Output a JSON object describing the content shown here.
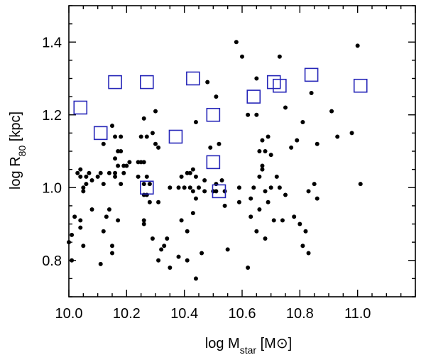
{
  "chart_data": {
    "type": "scatter",
    "xlabel": {
      "main": "log M",
      "sub": "star",
      "unit_open": " [M",
      "unit_sym": "⊙",
      "unit_close": "]"
    },
    "ylabel": {
      "main": "log R",
      "sub": "80",
      "unit": " [kpc]"
    },
    "xlim": [
      10.0,
      11.2
    ],
    "ylim": [
      0.7,
      1.5
    ],
    "x_ticks": [
      "10.0",
      "10.2",
      "10.4",
      "10.6",
      "10.8",
      "11.0"
    ],
    "y_ticks": [
      "0.8",
      "1.0",
      "1.2",
      "1.4"
    ],
    "grid": false,
    "colors": {
      "points": "#000000",
      "squares": "#2626b8"
    },
    "series": [
      {
        "marker": "circle",
        "points": [
          [
            10.0,
            0.85
          ],
          [
            10.01,
            0.87
          ],
          [
            10.01,
            0.8
          ],
          [
            10.02,
            0.92
          ],
          [
            10.03,
            1.04
          ],
          [
            10.04,
            1.03
          ],
          [
            10.04,
            1.05
          ],
          [
            10.04,
            0.91
          ],
          [
            10.04,
            0.89
          ],
          [
            10.05,
            1.0
          ],
          [
            10.05,
            0.99
          ],
          [
            10.05,
            0.84
          ],
          [
            10.06,
            1.03
          ],
          [
            10.06,
            1.01
          ],
          [
            10.07,
            1.04
          ],
          [
            10.08,
            1.02
          ],
          [
            10.08,
            0.94
          ],
          [
            10.1,
            1.03
          ],
          [
            10.11,
            1.04
          ],
          [
            10.11,
            0.79
          ],
          [
            10.12,
            1.01
          ],
          [
            10.12,
            0.88
          ],
          [
            10.12,
            1.12
          ],
          [
            10.13,
            0.92
          ],
          [
            10.14,
            1.04
          ],
          [
            10.14,
            0.94
          ],
          [
            10.15,
            1.17
          ],
          [
            10.15,
            0.84
          ],
          [
            10.15,
            0.82
          ],
          [
            10.16,
            1.14
          ],
          [
            10.16,
            1.08
          ],
          [
            10.16,
            1.04
          ],
          [
            10.16,
            1.03
          ],
          [
            10.17,
            1.1
          ],
          [
            10.17,
            1.06
          ],
          [
            10.17,
            0.91
          ],
          [
            10.18,
            1.14
          ],
          [
            10.18,
            1.1
          ],
          [
            10.18,
            1.01
          ],
          [
            10.19,
            1.06
          ],
          [
            10.19,
            1.04
          ],
          [
            10.2,
            1.06
          ],
          [
            10.21,
            1.07
          ],
          [
            10.24,
            1.07
          ],
          [
            10.24,
            1.03
          ],
          [
            10.25,
            1.14
          ],
          [
            10.25,
            1.07
          ],
          [
            10.26,
            1.19
          ],
          [
            10.26,
            1.07
          ],
          [
            10.26,
            1.01
          ],
          [
            10.26,
            0.98
          ],
          [
            10.26,
            0.91
          ],
          [
            10.26,
            0.9
          ],
          [
            10.27,
            1.14
          ],
          [
            10.27,
            1.03
          ],
          [
            10.27,
            0.98
          ],
          [
            10.28,
            1.01
          ],
          [
            10.28,
            0.96
          ],
          [
            10.29,
            1.15
          ],
          [
            10.29,
            0.86
          ],
          [
            10.3,
            1.21
          ],
          [
            10.3,
            1.12
          ],
          [
            10.31,
            1.11
          ],
          [
            10.31,
            0.96
          ],
          [
            10.31,
            0.8
          ],
          [
            10.32,
            0.83
          ],
          [
            10.33,
            0.84
          ],
          [
            10.34,
            0.86
          ],
          [
            10.35,
            1.0
          ],
          [
            10.35,
            0.78
          ],
          [
            10.38,
            1.0
          ],
          [
            10.38,
            0.81
          ],
          [
            10.39,
            1.03
          ],
          [
            10.39,
            0.91
          ],
          [
            10.4,
            1.0
          ],
          [
            10.41,
            1.04
          ],
          [
            10.41,
            0.8
          ],
          [
            10.41,
            0.88
          ],
          [
            10.42,
            1.04
          ],
          [
            10.42,
            1.0
          ],
          [
            10.43,
            1.05
          ],
          [
            10.43,
            0.99
          ],
          [
            10.43,
            0.93
          ],
          [
            10.44,
            1.18
          ],
          [
            10.44,
            1.03
          ],
          [
            10.44,
            0.97
          ],
          [
            10.44,
            0.75
          ],
          [
            10.45,
            1.0
          ],
          [
            10.46,
            0.82
          ],
          [
            10.47,
            1.02
          ],
          [
            10.47,
            0.99
          ],
          [
            10.48,
            1.29
          ],
          [
            10.49,
            1.11
          ],
          [
            10.5,
            0.99
          ],
          [
            10.51,
            1.25
          ],
          [
            10.51,
            1.01
          ],
          [
            10.51,
            0.99
          ],
          [
            10.52,
            1.12
          ],
          [
            10.53,
            1.02
          ],
          [
            10.54,
            0.99
          ],
          [
            10.54,
            0.95
          ],
          [
            10.55,
            0.83
          ],
          [
            10.58,
            1.4
          ],
          [
            10.59,
            1.0
          ],
          [
            10.59,
            0.96
          ],
          [
            10.6,
            1.36
          ],
          [
            10.62,
            1.2
          ],
          [
            10.62,
            0.78
          ],
          [
            10.63,
            0.97
          ],
          [
            10.63,
            0.92
          ],
          [
            10.64,
            1.0
          ],
          [
            10.65,
            1.3
          ],
          [
            10.65,
            1.2
          ],
          [
            10.65,
            0.88
          ],
          [
            10.66,
            1.1
          ],
          [
            10.66,
            1.03
          ],
          [
            10.66,
            0.94
          ],
          [
            10.67,
            1.13
          ],
          [
            10.67,
            1.06
          ],
          [
            10.67,
            1.05
          ],
          [
            10.68,
            1.1
          ],
          [
            10.68,
            0.99
          ],
          [
            10.68,
            0.86
          ],
          [
            10.69,
            1.14
          ],
          [
            10.69,
            0.96
          ],
          [
            10.7,
            1.09
          ],
          [
            10.7,
            1.0
          ],
          [
            10.71,
            0.91
          ],
          [
            10.72,
            1.03
          ],
          [
            10.73,
            1.36
          ],
          [
            10.73,
            1.0
          ],
          [
            10.74,
            0.91
          ],
          [
            10.75,
            1.22
          ],
          [
            10.75,
            0.98
          ],
          [
            10.77,
            1.11
          ],
          [
            10.78,
            0.92
          ],
          [
            10.79,
            1.13
          ],
          [
            10.8,
            0.9
          ],
          [
            10.81,
            1.18
          ],
          [
            10.81,
            0.84
          ],
          [
            10.82,
            0.88
          ],
          [
            10.83,
            0.82
          ],
          [
            10.83,
            0.99
          ],
          [
            10.84,
            1.26
          ],
          [
            10.85,
            1.01
          ],
          [
            10.86,
            0.97
          ],
          [
            10.86,
            1.12
          ],
          [
            10.91,
            1.21
          ],
          [
            10.93,
            1.14
          ],
          [
            10.98,
            1.15
          ],
          [
            11.0,
            1.39
          ],
          [
            11.01,
            1.01
          ]
        ]
      },
      {
        "marker": "open-square",
        "points": [
          [
            10.04,
            1.22
          ],
          [
            10.11,
            1.15
          ],
          [
            10.16,
            1.29
          ],
          [
            10.27,
            1.29
          ],
          [
            10.27,
            1.0
          ],
          [
            10.37,
            1.14
          ],
          [
            10.43,
            1.3
          ],
          [
            10.5,
            1.2
          ],
          [
            10.5,
            1.07
          ],
          [
            10.52,
            0.99
          ],
          [
            10.64,
            1.25
          ],
          [
            10.71,
            1.29
          ],
          [
            10.73,
            1.28
          ],
          [
            10.84,
            1.31
          ],
          [
            11.01,
            1.28
          ]
        ]
      }
    ]
  }
}
